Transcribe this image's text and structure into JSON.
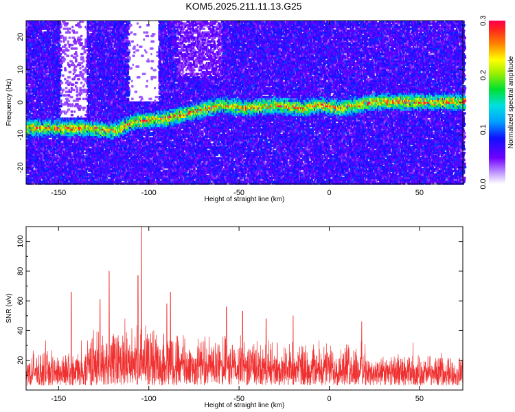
{
  "title": "KOM5.2025.211.11.13.G25",
  "chart_data": [
    {
      "type": "heatmap",
      "xlabel": "Height of straight line (km)",
      "ylabel": "Frequency (Hz)",
      "xlim": [
        -168,
        74
      ],
      "ylim": [
        -25,
        25
      ],
      "x_ticks": [
        -150,
        -100,
        -50,
        0,
        50
      ],
      "y_ticks": [
        -20,
        -10,
        0,
        10,
        20
      ],
      "colorbar": {
        "label": "Normalized spectral amplitude",
        "range": [
          0,
          0.3
        ],
        "ticks": [
          0.0,
          0.1,
          0.2,
          0.3
        ],
        "tick_labels": [
          "0.0",
          "0.1",
          "0.2",
          "0.3"
        ],
        "colormap": "rainbow",
        "low_color": "#ffffff",
        "mid_color": "#3010ff",
        "high_color": "#ff0040"
      },
      "ridge": [
        {
          "x": -135,
          "y": -8
        },
        {
          "x": -120,
          "y": -9
        },
        {
          "x": -108,
          "y": -6
        },
        {
          "x": -90,
          "y": -5
        },
        {
          "x": -75,
          "y": -3
        },
        {
          "x": -60,
          "y": -1
        },
        {
          "x": -45,
          "y": -2
        },
        {
          "x": -30,
          "y": -1
        },
        {
          "x": -15,
          "y": -2
        },
        {
          "x": -5,
          "y": -1
        },
        {
          "x": 5,
          "y": -2
        },
        {
          "x": 15,
          "y": -1
        },
        {
          "x": 25,
          "y": 0
        }
      ]
    },
    {
      "type": "line",
      "xlabel": "Height of straight line (km)",
      "ylabel": "SNR (v/v)",
      "xlim": [
        -168,
        74
      ],
      "ylim": [
        0,
        110
      ],
      "x_ticks": [
        -150,
        -100,
        -50,
        0,
        50
      ],
      "y_ticks": [
        20,
        40,
        60,
        80,
        100
      ],
      "series_color": "#f03030",
      "peaks": [
        {
          "x": -104,
          "y": 110
        },
        {
          "x": -106,
          "y": 77
        },
        {
          "x": -122,
          "y": 80
        },
        {
          "x": -143,
          "y": 66
        },
        {
          "x": -127,
          "y": 61
        },
        {
          "x": -88,
          "y": 66
        },
        {
          "x": -90,
          "y": 58
        },
        {
          "x": -57,
          "y": 56
        },
        {
          "x": -48,
          "y": 53
        },
        {
          "x": -35,
          "y": 48
        },
        {
          "x": -20,
          "y": 50
        },
        {
          "x": 18,
          "y": 46
        }
      ]
    }
  ]
}
